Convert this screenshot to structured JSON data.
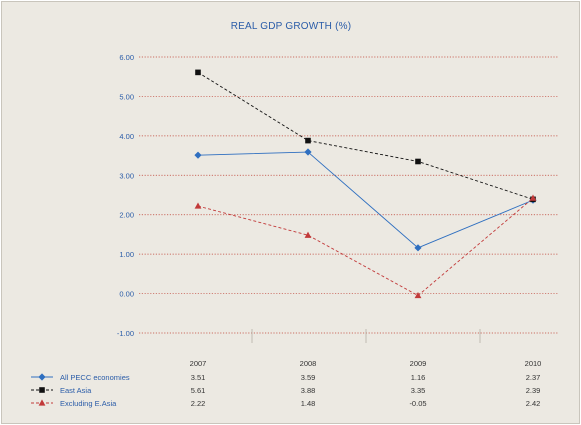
{
  "chart_data": {
    "type": "line",
    "title": "REAL GDP GROWTH (%)",
    "categories": [
      "2007",
      "2008",
      "2009",
      "2010"
    ],
    "ylim": [
      -1.0,
      6.0
    ],
    "yticks": [
      "6.00",
      "5.00",
      "4.00",
      "3.00",
      "2.00",
      "1.00",
      "0.00",
      "-1.00"
    ],
    "ytick_values": [
      6,
      5,
      4,
      3,
      2,
      1,
      0,
      -1
    ],
    "grid": true,
    "legend_placement": "bottom data table",
    "series": [
      {
        "name": "All PECC economies",
        "values": [
          3.51,
          3.59,
          1.16,
          2.37
        ],
        "labels": [
          "3.51",
          "3.59",
          "1.16",
          "2.37"
        ],
        "color": "#2f6fc0",
        "dash": "solid",
        "marker": "diamond"
      },
      {
        "name": "East Asia",
        "values": [
          5.61,
          3.88,
          3.35,
          2.39
        ],
        "labels": [
          "5.61",
          "3.88",
          "3.35",
          "2.39"
        ],
        "color": "#111111",
        "dash": "dashed",
        "marker": "square"
      },
      {
        "name": "Excluding E.Asia",
        "values": [
          2.22,
          1.48,
          -0.05,
          2.42
        ],
        "labels": [
          "2.22",
          "1.48",
          "-0.05",
          "2.42"
        ],
        "color": "#c23a3a",
        "dash": "dashed",
        "marker": "triangle"
      }
    ],
    "colors": {
      "background": "#ece9e2",
      "gridline": "#c0463a",
      "text": "#2a5ca8"
    }
  }
}
